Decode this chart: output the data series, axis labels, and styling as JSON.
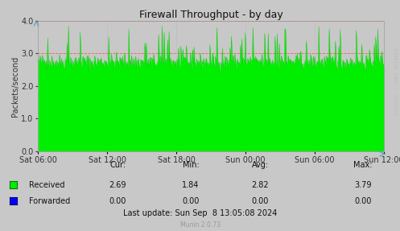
{
  "title": "Firewall Throughput - by day",
  "ylabel": "Packets/second",
  "ylim": [
    0.0,
    4.0
  ],
  "yticks": [
    0.0,
    1.0,
    2.0,
    3.0,
    4.0
  ],
  "xtick_labels": [
    "Sat 06:00",
    "Sat 12:00",
    "Sat 18:00",
    "Sun 00:00",
    "Sun 06:00",
    "Sun 12:00"
  ],
  "background_color": "#C8C8C8",
  "plot_bg_color": "#C8C8C8",
  "green_color": "#00CC00",
  "green_fill": "#00EE00",
  "blue_color": "#0000FF",
  "red_dashed_color": "#FF4444",
  "title_fontsize": 9,
  "axis_fontsize": 7,
  "tick_fontsize": 7,
  "label_fontsize": 7,
  "stats_fontsize": 7,
  "munin_fontsize": 5.5,
  "stats_cur_received": "2.69",
  "stats_min_received": "1.84",
  "stats_avg_received": "2.82",
  "stats_max_received": "3.79",
  "stats_cur_forwarded": "0.00",
  "stats_min_forwarded": "0.00",
  "stats_avg_forwarded": "0.00",
  "stats_max_forwarded": "0.00",
  "last_update": "Last update: Sun Sep  8 13:05:08 2024",
  "munin_version": "Munin 2.0.73",
  "watermark": "RRDTOOL / TOBI OETIKER",
  "n_points": 500,
  "base_value": 2.75,
  "spike_probability": 0.1,
  "spike_max": 3.85,
  "noise_std": 0.12
}
